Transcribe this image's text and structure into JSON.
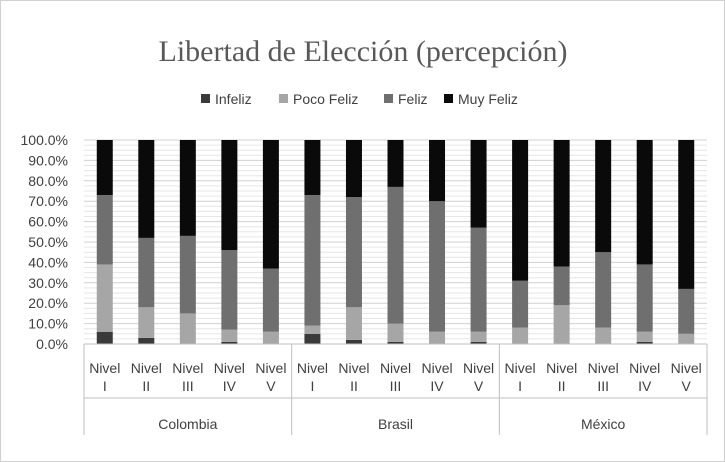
{
  "chart_data": {
    "type": "bar",
    "stacked": true,
    "percent": true,
    "title": "Libertad de Elección (percepción)",
    "ylim": [
      0,
      100
    ],
    "yticks": [
      "0.0%",
      "10.0%",
      "20.0%",
      "30.0%",
      "40.0%",
      "50.0%",
      "60.0%",
      "70.0%",
      "80.0%",
      "90.0%",
      "100.0%"
    ],
    "legend_position": "top",
    "groups": [
      "Colombia",
      "Brasil",
      "México"
    ],
    "level_labels": [
      [
        "Nivel",
        "I"
      ],
      [
        "Nivel",
        "II"
      ],
      [
        "Nivel",
        "III"
      ],
      [
        "Nivel",
        "IV"
      ],
      [
        "Nivel",
        "V"
      ]
    ],
    "categories": [
      "Colombia Nivel I",
      "Colombia Nivel II",
      "Colombia Nivel III",
      "Colombia Nivel IV",
      "Colombia Nivel V",
      "Brasil Nivel I",
      "Brasil Nivel II",
      "Brasil Nivel III",
      "Brasil Nivel IV",
      "Brasil Nivel V",
      "México Nivel I",
      "México Nivel II",
      "México Nivel III",
      "México Nivel IV",
      "México Nivel V"
    ],
    "series": [
      {
        "name": "Infeliz",
        "color": "#3a3a3a",
        "values": [
          6,
          3,
          0,
          1,
          0,
          5,
          2,
          1,
          0,
          1,
          0,
          0,
          0,
          1,
          0
        ]
      },
      {
        "name": "Poco Feliz",
        "color": "#a6a6a6",
        "values": [
          33,
          15,
          15,
          6,
          6,
          4,
          16,
          9,
          6,
          5,
          8,
          19,
          8,
          5,
          5
        ]
      },
      {
        "name": "Feliz",
        "color": "#6f6f6f",
        "values": [
          34,
          34,
          38,
          39,
          31,
          64,
          54,
          67,
          64,
          51,
          23,
          19,
          37,
          33,
          22
        ]
      },
      {
        "name": "Muy Feliz",
        "color": "#0a0a0a",
        "values": [
          27,
          48,
          47,
          54,
          63,
          27,
          28,
          23,
          30,
          43,
          69,
          62,
          55,
          61,
          73
        ]
      }
    ]
  }
}
